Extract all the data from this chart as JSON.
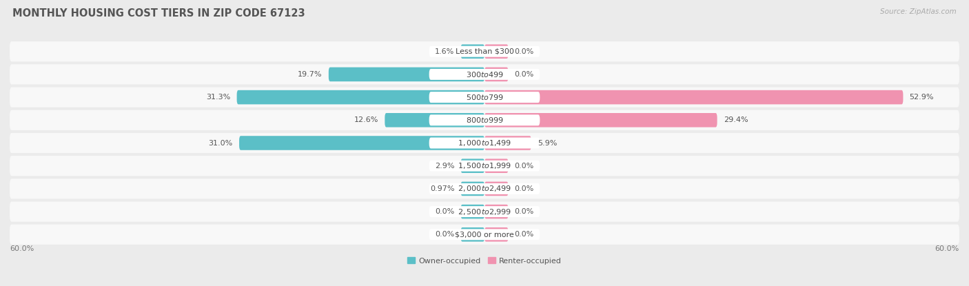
{
  "title": "MONTHLY HOUSING COST TIERS IN ZIP CODE 67123",
  "source": "Source: ZipAtlas.com",
  "categories": [
    "Less than $300",
    "$300 to $499",
    "$500 to $799",
    "$800 to $999",
    "$1,000 to $1,499",
    "$1,500 to $1,999",
    "$2,000 to $2,499",
    "$2,500 to $2,999",
    "$3,000 or more"
  ],
  "owner_values": [
    1.6,
    19.7,
    31.3,
    12.6,
    31.0,
    2.9,
    0.97,
    0.0,
    0.0
  ],
  "renter_values": [
    0.0,
    0.0,
    52.9,
    29.4,
    5.9,
    0.0,
    0.0,
    0.0,
    0.0
  ],
  "owner_color": "#5bbfc7",
  "renter_color": "#f093b0",
  "bg_color": "#ebebeb",
  "row_bg_color": "#f8f8f8",
  "max_value": 60.0,
  "min_stub": 3.0,
  "label_fontsize": 8.0,
  "title_fontsize": 10.5,
  "source_fontsize": 7.5
}
